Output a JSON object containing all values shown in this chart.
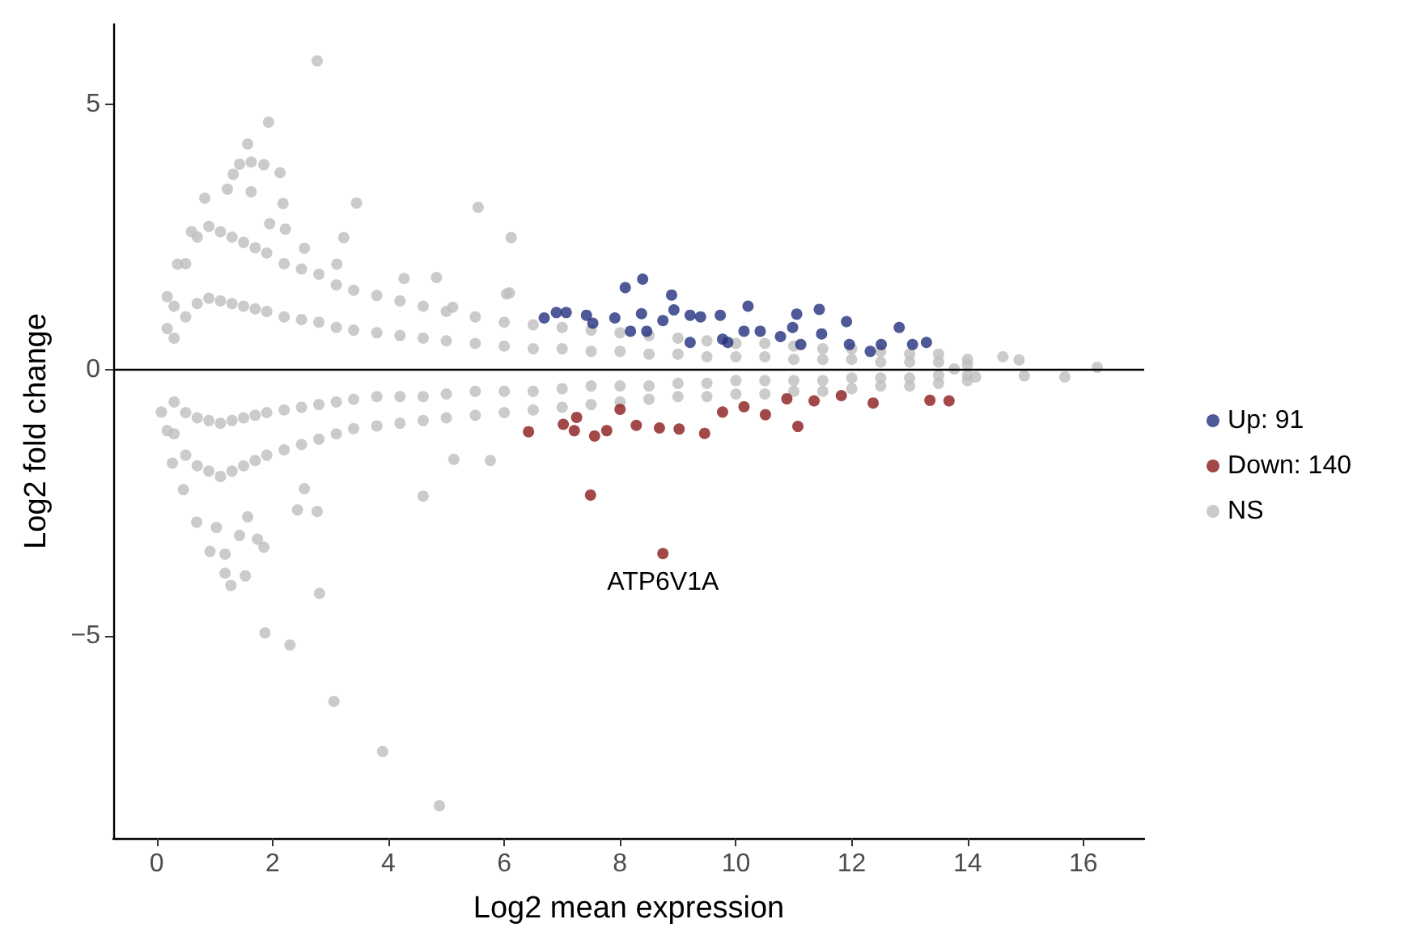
{
  "chart_data": {
    "type": "scatter",
    "xlabel": "Log2 mean expression",
    "ylabel": "Log2 fold change",
    "xlim": [
      -0.75,
      17.05
    ],
    "ylim": [
      -8.8,
      6.5
    ],
    "xticks": [
      0,
      2,
      4,
      6,
      8,
      10,
      12,
      14,
      16
    ],
    "yticks": [
      -5,
      0,
      5
    ],
    "grid": false,
    "legend": "right",
    "marker": "circle",
    "ref_lines": [
      {
        "axis": "y",
        "value": 0,
        "color": "#000000",
        "line_style": "solid"
      }
    ],
    "annotations": [
      {
        "text": "ATP6V1A",
        "x": 8.74,
        "y": -3.45
      }
    ],
    "series": [
      {
        "name": "Up: 91",
        "color": "#232f7d",
        "x": [
          6.69,
          6.9,
          7.07,
          7.42,
          7.53,
          7.91,
          8.09,
          8.39,
          8.37,
          8.46,
          8.89,
          8.93,
          8.74,
          9.21,
          9.39,
          9.73,
          9.77,
          10.21,
          10.14,
          10.42,
          10.77,
          10.98,
          11.05,
          11.44,
          11.48,
          11.91,
          11.96,
          12.32,
          12.51,
          12.82,
          13.05,
          13.29,
          8.18,
          9.86,
          9.21,
          11.12
        ],
        "values": [
          0.98,
          1.08,
          1.08,
          1.03,
          0.88,
          0.98,
          1.55,
          1.71,
          1.06,
          0.73,
          1.41,
          1.13,
          0.93,
          1.03,
          1.0,
          1.03,
          0.58,
          1.2,
          0.73,
          0.73,
          0.63,
          0.8,
          1.05,
          1.14,
          0.68,
          0.91,
          0.48,
          0.35,
          0.48,
          0.8,
          0.48,
          0.52,
          0.73,
          0.52,
          0.52,
          0.48
        ]
      },
      {
        "name": "Down: 140",
        "color": "#8b1a1a",
        "x": [
          6.42,
          7.02,
          7.21,
          7.56,
          7.77,
          7.49,
          8.74,
          8.28,
          8.68,
          9.02,
          9.46,
          9.77,
          10.51,
          11.07,
          11.35,
          11.82,
          12.37,
          13.35,
          13.68,
          8.0,
          7.25,
          10.14,
          10.88
        ],
        "values": [
          -1.16,
          -1.02,
          -1.14,
          -1.24,
          -1.14,
          -2.35,
          -3.45,
          -1.04,
          -1.09,
          -1.11,
          -1.19,
          -0.79,
          -0.84,
          -1.06,
          -0.58,
          -0.48,
          -0.62,
          -0.57,
          -0.58,
          -0.74,
          -0.89,
          -0.69,
          -0.54
        ]
      },
      {
        "name": "NS",
        "color": "#bebebe",
        "x": [
          0.3,
          0.3,
          0.3,
          0.3,
          0.5,
          0.5,
          0.5,
          0.5,
          0.7,
          0.7,
          0.7,
          0.7,
          0.9,
          0.9,
          0.9,
          0.9,
          1.1,
          1.1,
          1.1,
          1.1,
          1.3,
          1.3,
          1.3,
          1.3,
          1.5,
          1.5,
          1.5,
          1.5,
          1.7,
          1.7,
          1.7,
          1.7,
          1.9,
          1.9,
          1.9,
          1.9,
          2.2,
          2.2,
          2.2,
          2.2,
          2.5,
          2.5,
          2.5,
          2.5,
          2.8,
          2.8,
          2.8,
          2.8,
          3.1,
          3.1,
          3.1,
          3.1,
          3.4,
          3.4,
          3.4,
          3.4,
          3.8,
          3.8,
          3.8,
          3.8,
          4.2,
          4.2,
          4.2,
          4.2,
          4.6,
          4.6,
          4.6,
          4.6,
          5.0,
          5.0,
          5.0,
          5.0,
          5.5,
          5.5,
          5.5,
          5.5,
          6.0,
          6.0,
          6.0,
          6.0,
          6.5,
          6.5,
          6.5,
          6.5,
          7.0,
          7.0,
          7.0,
          7.0,
          7.5,
          7.5,
          7.5,
          7.5,
          8.0,
          8.0,
          8.0,
          8.0,
          8.5,
          8.5,
          8.5,
          8.5,
          9.0,
          9.0,
          9.0,
          9.0,
          9.5,
          9.5,
          9.5,
          9.5,
          10,
          10,
          10,
          10,
          10.5,
          10.5,
          10.5,
          10.5,
          11,
          11,
          11,
          11,
          11.5,
          11.5,
          11.5,
          11.5,
          12,
          12,
          12,
          12,
          12.5,
          12.5,
          12.5,
          12.5,
          13,
          13,
          13,
          13,
          13.5,
          13.5,
          13.5,
          13.5,
          14,
          14,
          14,
          14,
          2.77,
          1.93,
          1.57,
          1.63,
          1.43,
          1.85,
          2.13,
          1.32,
          1.22,
          1.63,
          2.18,
          3.45,
          5.55,
          6.12,
          3.23,
          0.83,
          0.18,
          0.36,
          0.6,
          0.18,
          3.11,
          4.27,
          4.83,
          5.11,
          6.09,
          2.55,
          1.95,
          2.22,
          0.08,
          0.18,
          0.27,
          0.46,
          0.69,
          0.92,
          1.18,
          1.28,
          1.53,
          1.18,
          1.85,
          2.81,
          1.87,
          2.3,
          3.06,
          3.9,
          4.88,
          4.6,
          5.76,
          5.13,
          2.77,
          2.43,
          2.55,
          1.74,
          1.43,
          1.03,
          1.57,
          6.04,
          14.61,
          14.89,
          14.98,
          15.68,
          16.24,
          14.14,
          13.77
        ],
        "values": [
          1.2,
          0.6,
          -0.6,
          -1.2,
          2.0,
          1.0,
          -0.8,
          -1.6,
          2.5,
          1.25,
          -0.9,
          -1.8,
          2.7,
          1.35,
          -0.95,
          -1.9,
          2.6,
          1.3,
          -1.0,
          -2.0,
          2.5,
          1.25,
          -0.95,
          -1.9,
          2.4,
          1.2,
          -0.9,
          -1.8,
          2.3,
          1.15,
          -0.85,
          -1.7,
          2.2,
          1.1,
          -0.8,
          -1.6,
          2.0,
          1.0,
          -0.75,
          -1.5,
          1.9,
          0.95,
          -0.7,
          -1.4,
          1.8,
          0.9,
          -0.65,
          -1.3,
          1.6,
          0.8,
          -0.6,
          -1.2,
          1.5,
          0.75,
          -0.55,
          -1.1,
          1.4,
          0.7,
          -0.5,
          -1.05,
          1.3,
          0.65,
          -0.5,
          -1.0,
          1.2,
          0.6,
          -0.5,
          -0.95,
          1.1,
          0.55,
          -0.45,
          -0.9,
          1.0,
          0.5,
          -0.4,
          -0.85,
          0.9,
          0.45,
          -0.4,
          -0.8,
          0.85,
          0.4,
          -0.4,
          -0.75,
          0.8,
          0.4,
          -0.35,
          -0.7,
          0.75,
          0.35,
          -0.3,
          -0.65,
          0.7,
          0.35,
          -0.3,
          -0.6,
          0.65,
          0.3,
          -0.3,
          -0.55,
          0.6,
          0.3,
          -0.25,
          -0.5,
          0.55,
          0.25,
          -0.25,
          -0.5,
          0.5,
          0.25,
          -0.2,
          -0.45,
          0.5,
          0.25,
          -0.2,
          -0.45,
          0.45,
          0.2,
          -0.2,
          -0.4,
          0.4,
          0.2,
          -0.2,
          -0.4,
          0.4,
          0.2,
          -0.15,
          -0.35,
          0.35,
          0.15,
          -0.15,
          -0.3,
          0.3,
          0.15,
          -0.15,
          -0.3,
          0.3,
          0.15,
          -0.1,
          -0.25,
          0.2,
          0.1,
          -0.1,
          -0.2,
          5.81,
          4.66,
          4.25,
          3.91,
          3.87,
          3.86,
          3.71,
          3.68,
          3.4,
          3.35,
          3.13,
          3.14,
          3.06,
          2.49,
          2.49,
          3.23,
          1.38,
          1.99,
          2.6,
          0.78,
          1.99,
          1.72,
          1.74,
          1.18,
          1.45,
          2.29,
          2.75,
          2.65,
          -0.79,
          -1.14,
          -1.75,
          -2.25,
          -2.86,
          -3.41,
          -3.46,
          -4.05,
          -3.87,
          -3.82,
          -3.33,
          -4.2,
          -4.94,
          -5.17,
          -6.23,
          -7.17,
          -8.19,
          -2.37,
          -1.7,
          -1.68,
          -2.66,
          -2.63,
          -2.23,
          -3.18,
          -3.11,
          -2.96,
          -2.76,
          1.43,
          0.25,
          0.19,
          -0.11,
          -0.13,
          0.05,
          -0.13,
          0.02
        ]
      }
    ]
  }
}
